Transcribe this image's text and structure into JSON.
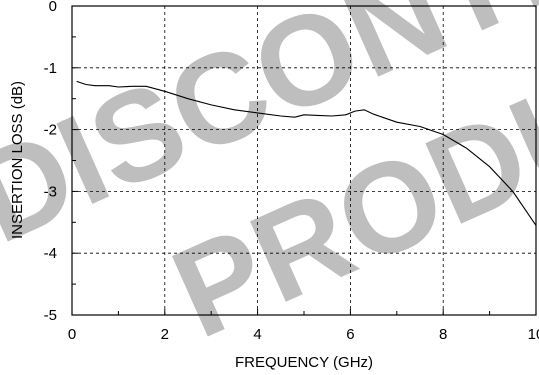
{
  "chart_data": {
    "type": "line",
    "title": "",
    "xlabel": "FREQUENCY (GHz)",
    "ylabel": "INSERTION LOSS (dB)",
    "xlim": [
      0,
      10
    ],
    "ylim": [
      -5,
      0
    ],
    "xticks": [
      "0",
      "2",
      "4",
      "6",
      "8",
      "10"
    ],
    "yticks": [
      "0",
      "-1",
      "-2",
      "-3",
      "-4",
      "-5"
    ],
    "grid": true,
    "legend": "none",
    "series": [
      {
        "x": [
          0.1,
          0.3,
          0.5,
          0.8,
          1.0,
          1.3,
          1.6,
          2.0,
          2.5,
          3.0,
          3.5,
          4.0,
          4.5,
          4.8,
          5.0,
          5.3,
          5.6,
          5.9,
          6.1,
          6.3,
          6.5,
          7.0,
          7.5,
          8.0,
          8.5,
          9.0,
          9.5,
          10.0
        ],
        "y": [
          -1.22,
          -1.27,
          -1.29,
          -1.29,
          -1.31,
          -1.3,
          -1.3,
          -1.38,
          -1.5,
          -1.6,
          -1.68,
          -1.73,
          -1.78,
          -1.8,
          -1.76,
          -1.77,
          -1.78,
          -1.76,
          -1.7,
          -1.68,
          -1.75,
          -1.88,
          -1.95,
          -2.08,
          -2.3,
          -2.6,
          -3.0,
          -3.55
        ],
        "color": "#000000"
      }
    ]
  },
  "watermark": {
    "line1": "DISCONTINUED",
    "line2": "PRODUCT",
    "color": "#b3b3b3"
  }
}
